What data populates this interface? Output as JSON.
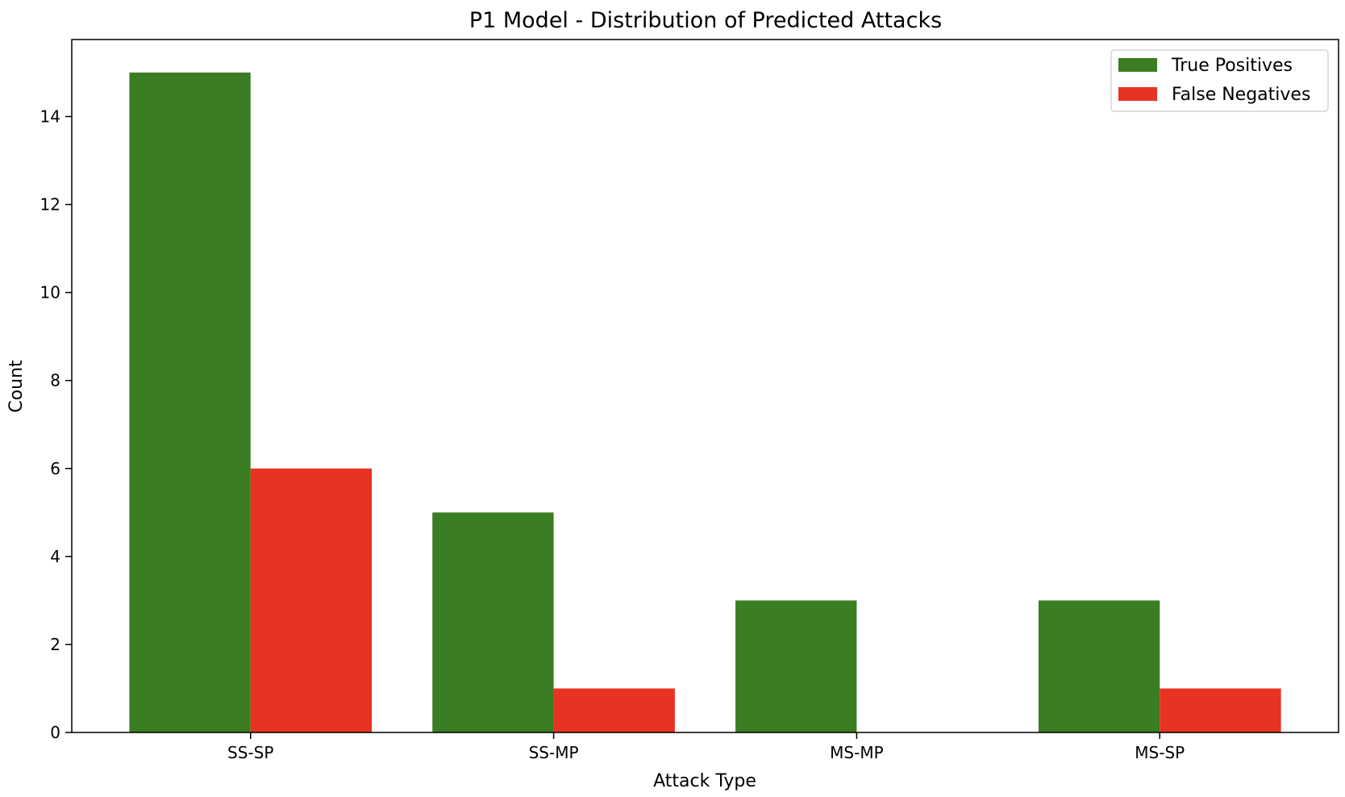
{
  "chart_data": {
    "type": "bar",
    "title": "P1 Model - Distribution of Predicted Attacks",
    "xlabel": "Attack Type",
    "ylabel": "Count",
    "categories": [
      "SS-SP",
      "SS-MP",
      "MS-MP",
      "MS-SP"
    ],
    "series": [
      {
        "name": "True Positives",
        "values": [
          15,
          5,
          3,
          3
        ],
        "color": "#3a7d22"
      },
      {
        "name": "False Negatives",
        "values": [
          6,
          1,
          0,
          1
        ],
        "color": "#e83323"
      }
    ],
    "ylim": [
      0,
      15.75
    ],
    "yticks": [
      0,
      2,
      4,
      6,
      8,
      10,
      12,
      14
    ],
    "grid": false,
    "legend_position": "top-right"
  }
}
